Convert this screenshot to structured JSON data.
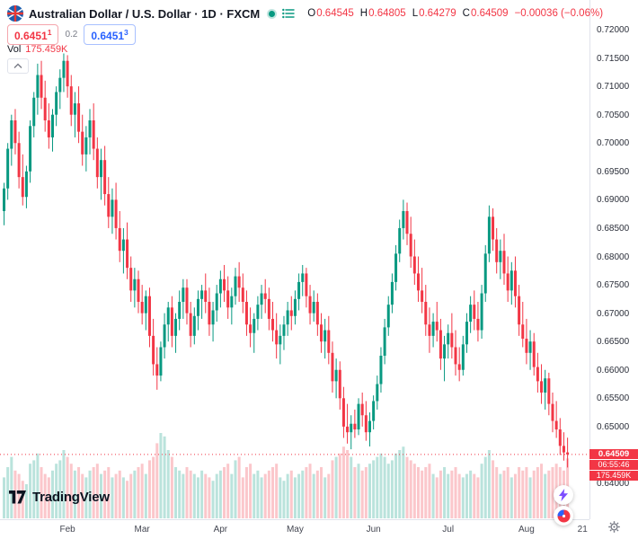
{
  "colors": {
    "up": "#089981",
    "down": "#f23645",
    "accent_blue": "#2962ff",
    "price_label_bg": "#f23645",
    "axis_text": "#434651"
  },
  "header": {
    "symbol_title": "Australian Dollar / U.S. Dollar",
    "sep1": "·",
    "interval": "1D",
    "sep2": "·",
    "exchange": "FXCM",
    "ohlc": {
      "o_label": "O",
      "o_value": "0.64545",
      "h_label": "H",
      "h_value": "0.64805",
      "l_label": "L",
      "l_value": "0.64279",
      "c_label": "C",
      "c_value": "0.64509",
      "change": "−0.00036 (−0.06%)"
    },
    "bid": {
      "main": "0.6451",
      "sup": "1"
    },
    "spread": "0.2",
    "ask": {
      "main": "0.6451",
      "sup": "3"
    },
    "vol_label": "Vol",
    "vol_value": "175.459K"
  },
  "price_line": {
    "price": "0.64509",
    "countdown": "06:55:46",
    "volume": "175.459K"
  },
  "branding": {
    "logo_text": "TradingView"
  },
  "chart_data": {
    "type": "candlestick",
    "title": "Australian Dollar / U.S. Dollar",
    "interval": "1D",
    "exchange": "FXCM",
    "ylim": [
      0.64,
      0.72
    ],
    "grid": false,
    "y_ticks": [
      "0.72000",
      "0.71500",
      "0.71000",
      "0.70500",
      "0.70000",
      "0.69500",
      "0.69000",
      "0.68500",
      "0.68000",
      "0.67500",
      "0.67000",
      "0.66500",
      "0.66000",
      "0.65500",
      "0.65000",
      "0.64500",
      "0.64000"
    ],
    "time_ticks": [
      {
        "label": "Feb",
        "i": 17
      },
      {
        "label": "Mar",
        "i": 37
      },
      {
        "label": "Apr",
        "i": 58
      },
      {
        "label": "May",
        "i": 78
      },
      {
        "label": "Jun",
        "i": 99
      },
      {
        "label": "Jul",
        "i": 119
      },
      {
        "label": "Aug",
        "i": 140
      },
      {
        "label": "21",
        "i": 155
      }
    ],
    "columns": [
      "open",
      "high",
      "low",
      "close",
      "volume_k"
    ],
    "last_close": 0.64509,
    "candles": [
      [
        0.688,
        0.693,
        0.6855,
        0.692,
        120
      ],
      [
        0.692,
        0.7,
        0.69,
        0.699,
        150
      ],
      [
        0.699,
        0.705,
        0.696,
        0.704,
        180
      ],
      [
        0.704,
        0.706,
        0.698,
        0.7,
        140
      ],
      [
        0.7,
        0.702,
        0.692,
        0.694,
        130
      ],
      [
        0.694,
        0.698,
        0.689,
        0.6905,
        110
      ],
      [
        0.6905,
        0.696,
        0.6885,
        0.695,
        100
      ],
      [
        0.695,
        0.704,
        0.693,
        0.703,
        160
      ],
      [
        0.703,
        0.709,
        0.701,
        0.708,
        170
      ],
      [
        0.708,
        0.714,
        0.705,
        0.712,
        190
      ],
      [
        0.712,
        0.7145,
        0.706,
        0.708,
        150
      ],
      [
        0.708,
        0.711,
        0.702,
        0.704,
        130
      ],
      [
        0.704,
        0.707,
        0.699,
        0.701,
        120
      ],
      [
        0.701,
        0.706,
        0.6985,
        0.705,
        140
      ],
      [
        0.705,
        0.71,
        0.703,
        0.709,
        160
      ],
      [
        0.709,
        0.713,
        0.706,
        0.7115,
        170
      ],
      [
        0.7115,
        0.7158,
        0.709,
        0.7145,
        200
      ],
      [
        0.7145,
        0.7155,
        0.708,
        0.71,
        180
      ],
      [
        0.71,
        0.712,
        0.703,
        0.705,
        160
      ],
      [
        0.705,
        0.709,
        0.701,
        0.707,
        140
      ],
      [
        0.707,
        0.71,
        0.7,
        0.702,
        150
      ],
      [
        0.702,
        0.705,
        0.696,
        0.698,
        130
      ],
      [
        0.698,
        0.703,
        0.695,
        0.701,
        120
      ],
      [
        0.701,
        0.706,
        0.698,
        0.704,
        140
      ],
      [
        0.704,
        0.707,
        0.697,
        0.699,
        150
      ],
      [
        0.699,
        0.701,
        0.692,
        0.694,
        160
      ],
      [
        0.694,
        0.699,
        0.69,
        0.697,
        130
      ],
      [
        0.697,
        0.6995,
        0.689,
        0.691,
        140
      ],
      [
        0.691,
        0.694,
        0.685,
        0.687,
        150
      ],
      [
        0.687,
        0.692,
        0.684,
        0.69,
        120
      ],
      [
        0.69,
        0.693,
        0.683,
        0.685,
        130
      ],
      [
        0.685,
        0.688,
        0.679,
        0.681,
        140
      ],
      [
        0.681,
        0.685,
        0.677,
        0.683,
        120
      ],
      [
        0.683,
        0.686,
        0.676,
        0.678,
        110
      ],
      [
        0.678,
        0.68,
        0.672,
        0.674,
        130
      ],
      [
        0.674,
        0.678,
        0.671,
        0.676,
        140
      ],
      [
        0.676,
        0.6775,
        0.67,
        0.672,
        150
      ],
      [
        0.672,
        0.675,
        0.668,
        0.67,
        160
      ],
      [
        0.67,
        0.674,
        0.667,
        0.673,
        130
      ],
      [
        0.673,
        0.6745,
        0.664,
        0.666,
        170
      ],
      [
        0.666,
        0.669,
        0.659,
        0.661,
        180
      ],
      [
        0.661,
        0.664,
        0.6565,
        0.659,
        220
      ],
      [
        0.659,
        0.665,
        0.658,
        0.664,
        250
      ],
      [
        0.664,
        0.67,
        0.662,
        0.668,
        240
      ],
      [
        0.668,
        0.672,
        0.665,
        0.671,
        200
      ],
      [
        0.671,
        0.673,
        0.664,
        0.666,
        180
      ],
      [
        0.666,
        0.67,
        0.663,
        0.669,
        150
      ],
      [
        0.669,
        0.674,
        0.667,
        0.672,
        140
      ],
      [
        0.672,
        0.676,
        0.669,
        0.6745,
        130
      ],
      [
        0.6745,
        0.676,
        0.668,
        0.67,
        150
      ],
      [
        0.67,
        0.672,
        0.664,
        0.666,
        140
      ],
      [
        0.666,
        0.671,
        0.6645,
        0.6695,
        130
      ],
      [
        0.6695,
        0.674,
        0.667,
        0.6725,
        120
      ],
      [
        0.6725,
        0.675,
        0.669,
        0.674,
        140
      ],
      [
        0.674,
        0.677,
        0.67,
        0.672,
        130
      ],
      [
        0.672,
        0.6745,
        0.666,
        0.668,
        120
      ],
      [
        0.668,
        0.672,
        0.665,
        0.6705,
        110
      ],
      [
        0.6705,
        0.675,
        0.6685,
        0.6735,
        130
      ],
      [
        0.6735,
        0.6775,
        0.671,
        0.676,
        140
      ],
      [
        0.676,
        0.6785,
        0.672,
        0.674,
        150
      ],
      [
        0.674,
        0.6765,
        0.669,
        0.671,
        160
      ],
      [
        0.671,
        0.6745,
        0.668,
        0.673,
        130
      ],
      [
        0.673,
        0.678,
        0.6715,
        0.6765,
        170
      ],
      [
        0.6765,
        0.679,
        0.672,
        0.6745,
        180
      ],
      [
        0.6745,
        0.677,
        0.67,
        0.672,
        120
      ],
      [
        0.672,
        0.674,
        0.666,
        0.668,
        150
      ],
      [
        0.668,
        0.671,
        0.664,
        0.6665,
        160
      ],
      [
        0.6665,
        0.67,
        0.663,
        0.669,
        130
      ],
      [
        0.669,
        0.673,
        0.667,
        0.6715,
        140
      ],
      [
        0.6715,
        0.675,
        0.669,
        0.6735,
        120
      ],
      [
        0.6735,
        0.676,
        0.67,
        0.6725,
        130
      ],
      [
        0.6725,
        0.6745,
        0.667,
        0.669,
        140
      ],
      [
        0.669,
        0.672,
        0.665,
        0.667,
        150
      ],
      [
        0.667,
        0.67,
        0.662,
        0.6645,
        160
      ],
      [
        0.6645,
        0.668,
        0.661,
        0.666,
        120
      ],
      [
        0.666,
        0.6695,
        0.6635,
        0.668,
        110
      ],
      [
        0.668,
        0.672,
        0.666,
        0.6705,
        130
      ],
      [
        0.6705,
        0.673,
        0.667,
        0.6695,
        140
      ],
      [
        0.6695,
        0.674,
        0.668,
        0.6725,
        120
      ],
      [
        0.6725,
        0.677,
        0.6705,
        0.6755,
        130
      ],
      [
        0.6755,
        0.6785,
        0.673,
        0.677,
        140
      ],
      [
        0.677,
        0.678,
        0.671,
        0.673,
        150
      ],
      [
        0.673,
        0.675,
        0.668,
        0.67,
        160
      ],
      [
        0.67,
        0.674,
        0.6685,
        0.672,
        130
      ],
      [
        0.672,
        0.6735,
        0.666,
        0.668,
        140
      ],
      [
        0.668,
        0.67,
        0.663,
        0.665,
        150
      ],
      [
        0.665,
        0.669,
        0.662,
        0.667,
        120
      ],
      [
        0.667,
        0.6695,
        0.661,
        0.663,
        130
      ],
      [
        0.663,
        0.665,
        0.656,
        0.658,
        170
      ],
      [
        0.658,
        0.662,
        0.655,
        0.66,
        180
      ],
      [
        0.66,
        0.6615,
        0.653,
        0.655,
        190
      ],
      [
        0.655,
        0.657,
        0.648,
        0.65,
        210
      ],
      [
        0.65,
        0.654,
        0.647,
        0.649,
        200
      ],
      [
        0.649,
        0.652,
        0.646,
        0.6505,
        180
      ],
      [
        0.6505,
        0.653,
        0.648,
        0.6495,
        150
      ],
      [
        0.6495,
        0.655,
        0.6485,
        0.654,
        160
      ],
      [
        0.654,
        0.656,
        0.65,
        0.652,
        140
      ],
      [
        0.652,
        0.6545,
        0.6475,
        0.649,
        150
      ],
      [
        0.649,
        0.6525,
        0.6465,
        0.651,
        160
      ],
      [
        0.651,
        0.6555,
        0.6495,
        0.6545,
        170
      ],
      [
        0.6545,
        0.659,
        0.653,
        0.6575,
        180
      ],
      [
        0.6575,
        0.664,
        0.656,
        0.6625,
        190
      ],
      [
        0.6625,
        0.669,
        0.661,
        0.6675,
        180
      ],
      [
        0.6675,
        0.673,
        0.666,
        0.6715,
        160
      ],
      [
        0.6715,
        0.677,
        0.67,
        0.6755,
        170
      ],
      [
        0.6755,
        0.682,
        0.674,
        0.6805,
        190
      ],
      [
        0.6805,
        0.6865,
        0.679,
        0.685,
        200
      ],
      [
        0.685,
        0.69,
        0.683,
        0.688,
        210
      ],
      [
        0.688,
        0.6895,
        0.682,
        0.684,
        180
      ],
      [
        0.684,
        0.687,
        0.678,
        0.68,
        170
      ],
      [
        0.68,
        0.683,
        0.675,
        0.677,
        160
      ],
      [
        0.677,
        0.68,
        0.672,
        0.674,
        150
      ],
      [
        0.674,
        0.678,
        0.67,
        0.672,
        140
      ],
      [
        0.672,
        0.675,
        0.666,
        0.668,
        150
      ],
      [
        0.668,
        0.671,
        0.663,
        0.666,
        160
      ],
      [
        0.666,
        0.67,
        0.664,
        0.6685,
        130
      ],
      [
        0.6685,
        0.672,
        0.665,
        0.667,
        120
      ],
      [
        0.667,
        0.669,
        0.66,
        0.662,
        140
      ],
      [
        0.662,
        0.666,
        0.658,
        0.6645,
        150
      ],
      [
        0.6645,
        0.668,
        0.662,
        0.6665,
        130
      ],
      [
        0.6665,
        0.67,
        0.662,
        0.664,
        140
      ],
      [
        0.664,
        0.667,
        0.659,
        0.661,
        150
      ],
      [
        0.661,
        0.664,
        0.658,
        0.66,
        130
      ],
      [
        0.66,
        0.666,
        0.659,
        0.6645,
        120
      ],
      [
        0.6645,
        0.67,
        0.663,
        0.6685,
        130
      ],
      [
        0.6685,
        0.673,
        0.6665,
        0.6715,
        140
      ],
      [
        0.6715,
        0.674,
        0.667,
        0.669,
        130
      ],
      [
        0.669,
        0.672,
        0.665,
        0.667,
        120
      ],
      [
        0.667,
        0.675,
        0.6655,
        0.6735,
        160
      ],
      [
        0.6735,
        0.682,
        0.672,
        0.6805,
        180
      ],
      [
        0.6805,
        0.689,
        0.679,
        0.687,
        200
      ],
      [
        0.687,
        0.6885,
        0.681,
        0.683,
        170
      ],
      [
        0.683,
        0.685,
        0.677,
        0.679,
        150
      ],
      [
        0.679,
        0.683,
        0.676,
        0.681,
        130
      ],
      [
        0.681,
        0.684,
        0.675,
        0.677,
        140
      ],
      [
        0.677,
        0.68,
        0.672,
        0.674,
        150
      ],
      [
        0.674,
        0.679,
        0.6715,
        0.6775,
        120
      ],
      [
        0.6775,
        0.68,
        0.671,
        0.673,
        130
      ],
      [
        0.673,
        0.675,
        0.666,
        0.668,
        150
      ],
      [
        0.668,
        0.672,
        0.664,
        0.6655,
        140
      ],
      [
        0.6655,
        0.669,
        0.661,
        0.663,
        150
      ],
      [
        0.663,
        0.667,
        0.66,
        0.665,
        120
      ],
      [
        0.665,
        0.6665,
        0.659,
        0.6605,
        140
      ],
      [
        0.6605,
        0.663,
        0.656,
        0.658,
        150
      ],
      [
        0.658,
        0.661,
        0.654,
        0.656,
        160
      ],
      [
        0.656,
        0.66,
        0.653,
        0.6585,
        130
      ],
      [
        0.6585,
        0.6595,
        0.652,
        0.654,
        140
      ],
      [
        0.654,
        0.656,
        0.649,
        0.651,
        150
      ],
      [
        0.651,
        0.6545,
        0.648,
        0.6495,
        160
      ],
      [
        0.6495,
        0.6515,
        0.645,
        0.6466,
        150
      ],
      [
        0.6466,
        0.649,
        0.644,
        0.64545,
        140
      ],
      [
        0.64545,
        0.64805,
        0.64279,
        0.64509,
        175.459
      ]
    ]
  }
}
